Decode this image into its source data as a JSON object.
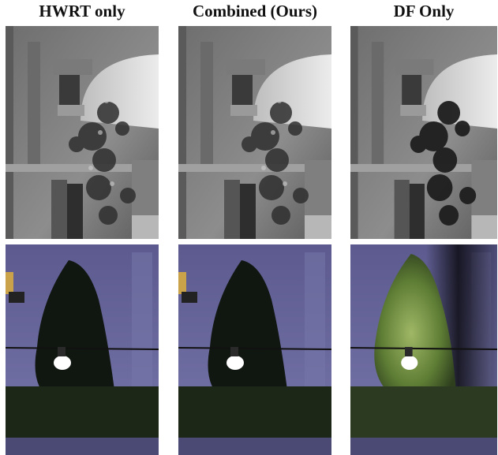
{
  "columns": [
    {
      "title": "HWRT only"
    },
    {
      "title": "Combined (Ours)"
    },
    {
      "title": "DF Only"
    }
  ],
  "rows": [
    {
      "scene": "building-facade"
    },
    {
      "scene": "night-tree"
    }
  ],
  "colors": {
    "facade_gray": "#8f8f8f",
    "sky_white": "#e8e8e8",
    "night_wall": "#6d6c9e",
    "tree_dark": "#141a12",
    "tree_lit": "#6b8a3b",
    "hedge": "#1e2a1c"
  }
}
